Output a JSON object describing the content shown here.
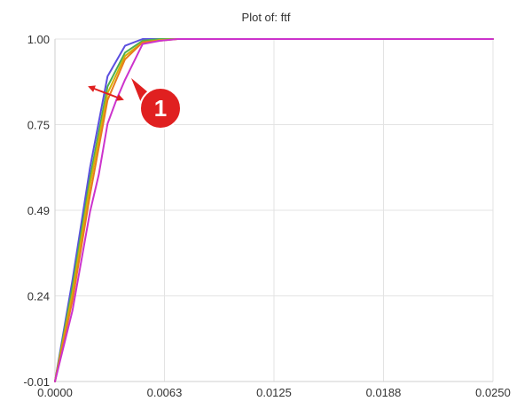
{
  "chart_data": {
    "type": "line",
    "title": "Plot of: ftf",
    "xlabel": "",
    "ylabel": "",
    "xlim": [
      0,
      0.025
    ],
    "ylim": [
      -0.01,
      1.0
    ],
    "x_ticks": [
      0,
      0.00625,
      0.0125,
      0.01875,
      0.025
    ],
    "x_tick_labels": [
      "0.0000",
      "0.0063",
      "0.0125",
      "0.0188",
      "0.0250"
    ],
    "y_ticks": [
      -0.01,
      0.2425,
      0.495,
      0.7475,
      1.0
    ],
    "y_tick_labels": [
      "-0.01",
      "0.24",
      "0.49",
      "0.75",
      "1.00"
    ],
    "grid": true,
    "legend": "none",
    "series": [
      {
        "color": "#5b4fe0",
        "x": [
          0,
          0.001,
          0.002,
          0.003,
          0.004,
          0.005,
          0.006,
          0.007,
          0.008,
          0.025
        ],
        "y": [
          -0.01,
          0.29,
          0.62,
          0.89,
          0.98,
          1.0,
          1.0,
          1.0,
          1.0,
          1.0
        ]
      },
      {
        "color": "#4caf50",
        "x": [
          0,
          0.001,
          0.002,
          0.003,
          0.004,
          0.005,
          0.006,
          0.007,
          0.008,
          0.025
        ],
        "y": [
          -0.01,
          0.27,
          0.59,
          0.86,
          0.96,
          0.995,
          1.0,
          1.0,
          1.0,
          1.0
        ]
      },
      {
        "color": "#d4b106",
        "x": [
          0,
          0.001,
          0.002,
          0.003,
          0.004,
          0.005,
          0.006,
          0.007,
          0.008,
          0.025
        ],
        "y": [
          -0.01,
          0.25,
          0.57,
          0.84,
          0.95,
          0.99,
          0.997,
          1.0,
          1.0,
          1.0
        ]
      },
      {
        "color": "#e87c1e",
        "x": [
          0,
          0.001,
          0.002,
          0.003,
          0.004,
          0.005,
          0.006,
          0.007,
          0.008,
          0.025
        ],
        "y": [
          -0.01,
          0.23,
          0.54,
          0.82,
          0.94,
          0.99,
          0.995,
          1.0,
          1.0,
          1.0
        ]
      },
      {
        "color": "#cc33cc",
        "x": [
          0,
          0.001,
          0.002,
          0.0025,
          0.003,
          0.0035,
          0.004,
          0.005,
          0.006,
          0.007,
          0.025
        ],
        "y": [
          -0.01,
          0.2,
          0.49,
          0.6,
          0.75,
          0.82,
          0.88,
          0.985,
          0.995,
          1.0,
          1.0
        ]
      }
    ]
  },
  "annotation": {
    "label": "1",
    "badge_color": "#e02020",
    "arrow_color": "#e02020"
  }
}
